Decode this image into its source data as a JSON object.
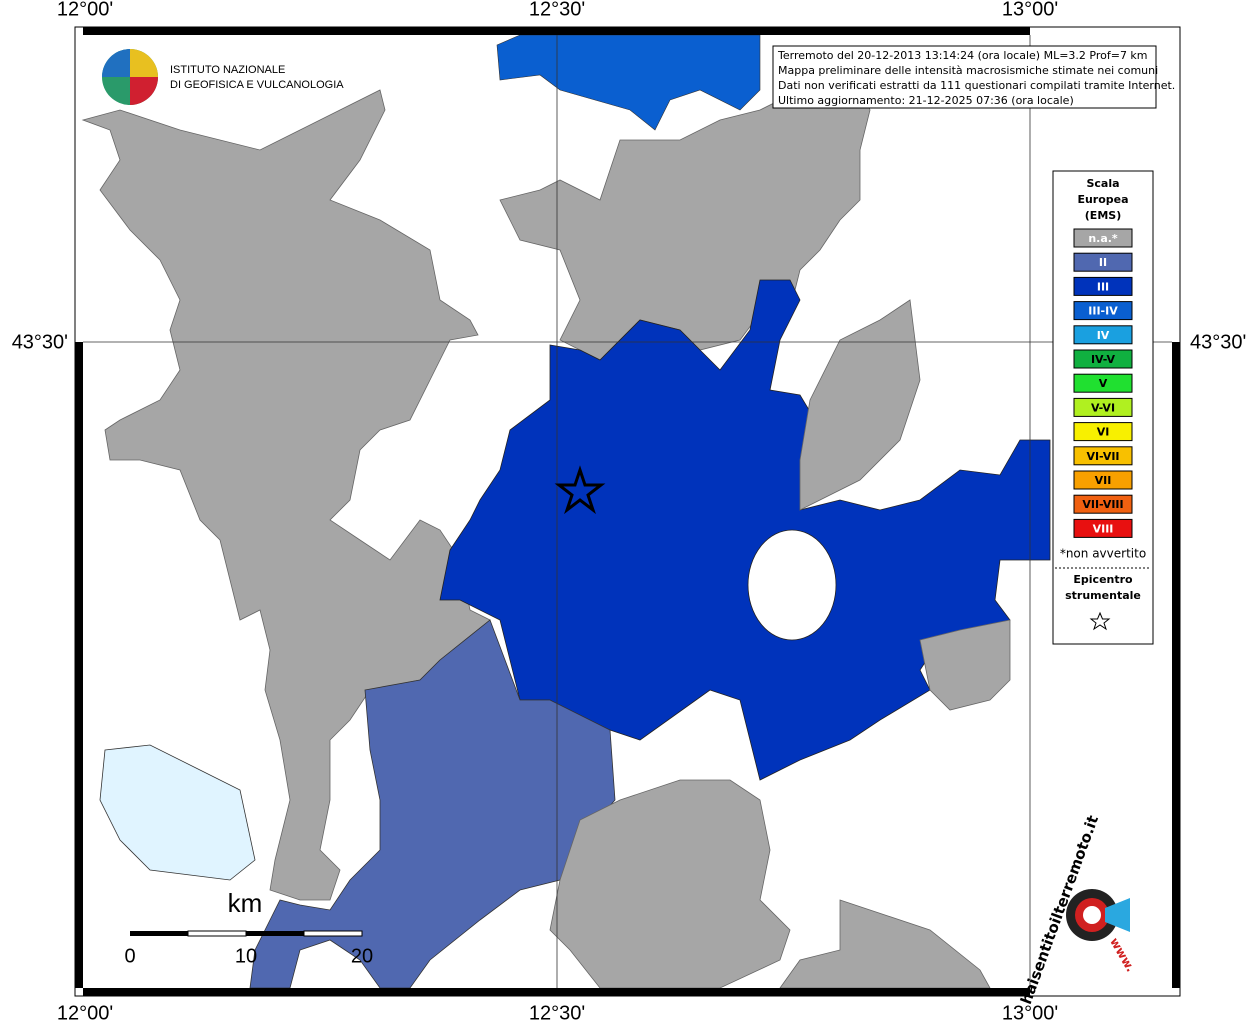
{
  "map": {
    "lon_labels_top": [
      "12°00'",
      "12°30'",
      "13°00'"
    ],
    "lon_labels_bottom": [
      "12°00'",
      "12°30'",
      "13°00'"
    ],
    "lat_label_left": "43°30'",
    "lat_label_right": "43°30'",
    "logo": {
      "lines": [
        "ISTITUTO NAZIONALE",
        "DI GEOFISICA E VULCANOLOGIA"
      ]
    },
    "info": [
      "Terremoto del 20-12-2013 13:14:24 (ora locale) ML=3.2 Prof=7 km",
      "Mappa preliminare delle intensità macrosismiche stimate nei comuni",
      "Dati non verificati estratti da 111 questionari compilati tramite Internet.",
      "Ultimo aggiornamento: 21-12-2025 07:36 (ora locale)"
    ],
    "legend": {
      "title": [
        "Scala",
        "Europea",
        "(EMS)"
      ],
      "entries": [
        {
          "label": "n.a.*",
          "color": "#a6a6a6"
        },
        {
          "label": "II",
          "color": "#5068b0"
        },
        {
          "label": "III",
          "color": "#0033bb"
        },
        {
          "label": "III-IV",
          "color": "#0a5fd0"
        },
        {
          "label": "IV",
          "color": "#1aa0e0"
        },
        {
          "label": "IV-V",
          "color": "#10b040"
        },
        {
          "label": "V",
          "color": "#20e030"
        },
        {
          "label": "V-VI",
          "color": "#b0f020"
        },
        {
          "label": "VI",
          "color": "#f8f000"
        },
        {
          "label": "VI-VII",
          "color": "#f8c000"
        },
        {
          "label": "VII",
          "color": "#f8a000"
        },
        {
          "label": "VII-VIII",
          "color": "#f06010"
        },
        {
          "label": "VIII",
          "color": "#e81010"
        }
      ],
      "note": "*non avvertito",
      "epicenter": [
        "Epicentro",
        "strumentale"
      ]
    },
    "scale": {
      "unit": "km",
      "labels": [
        "0",
        "10",
        "20"
      ]
    },
    "site_logo": {
      "text": "haisentitoilterremoto.it",
      "prefix": "www."
    }
  }
}
